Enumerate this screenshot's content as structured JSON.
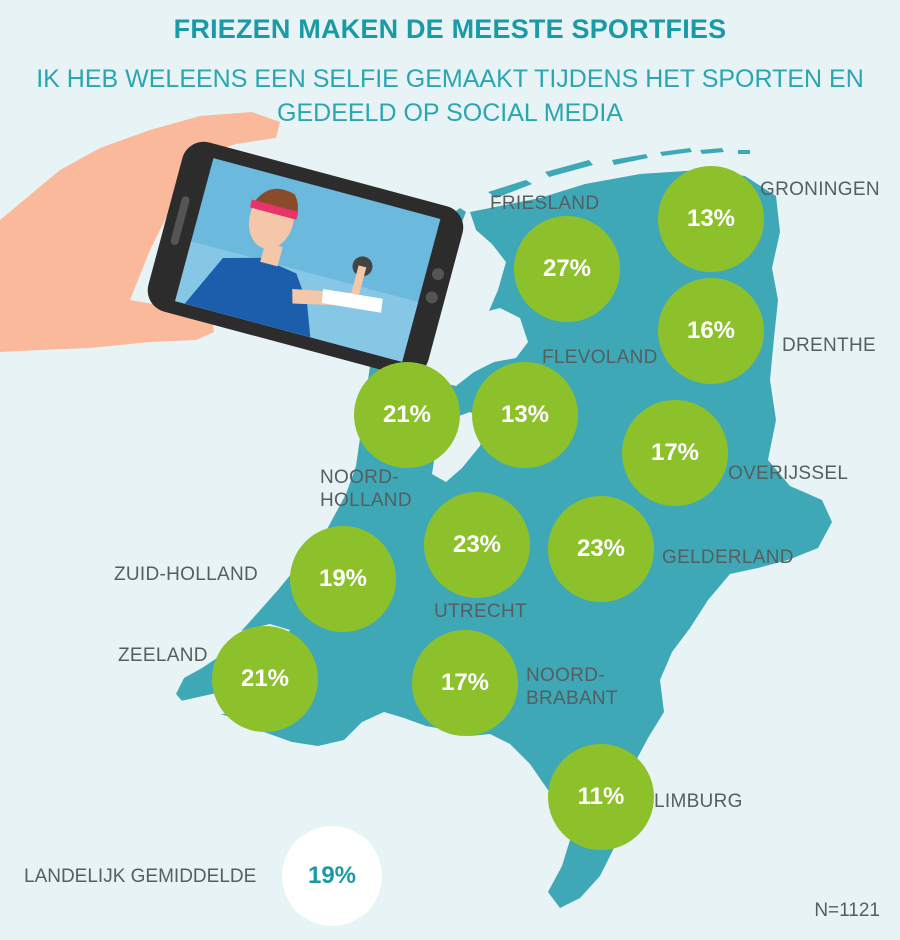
{
  "title": "FRIEZEN MAKEN DE MEESTE SPORTFIES",
  "subtitle_line1": "IK HEB WELEENS EEN SELFIE GEMAAKT TIJDENS HET SPORTEN EN",
  "subtitle_line2": "GEDEELD OP SOCIAL MEDIA",
  "colors": {
    "map": "#3ea8b6",
    "bubble": "#8dc12b",
    "accent": "#1a9aa6",
    "background": "#e8f3f5"
  },
  "provinces": [
    {
      "id": "friesland",
      "name": "FRIESLAND",
      "value": "27%"
    },
    {
      "id": "groningen",
      "name": "GRONINGEN",
      "value": "13%"
    },
    {
      "id": "drenthe",
      "name": "DRENTHE",
      "value": "16%"
    },
    {
      "id": "flevoland",
      "name": "FLEVOLAND",
      "value": "13%"
    },
    {
      "id": "noord-holland",
      "name_line1": "NOORD-",
      "name_line2": "HOLLAND",
      "value": "21%"
    },
    {
      "id": "overijssel",
      "name": "OVERIJSSEL",
      "value": "17%"
    },
    {
      "id": "utrecht",
      "name": "UTRECHT",
      "value": "23%"
    },
    {
      "id": "gelderland",
      "name": "GELDERLAND",
      "value": "23%"
    },
    {
      "id": "zuid-holland",
      "name": "ZUID-HOLLAND",
      "value": "19%"
    },
    {
      "id": "zeeland",
      "name": "ZEELAND",
      "value": "21%"
    },
    {
      "id": "noord-brabant",
      "name_line1": "NOORD-",
      "name_line2": "BRABANT",
      "value": "17%"
    },
    {
      "id": "limburg",
      "name": "LIMBURG",
      "value": "11%"
    }
  ],
  "national_average": {
    "label": "LANDELIJK GEMIDDELDE",
    "value": "19%"
  },
  "sample_size": "N=1121"
}
